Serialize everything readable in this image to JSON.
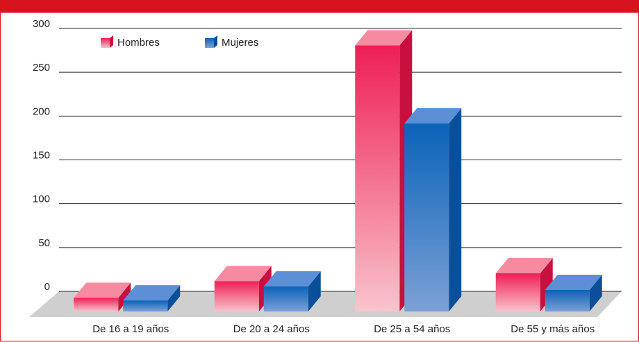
{
  "chart_data": {
    "type": "bar3d",
    "categories": [
      "De 16 a 19 años",
      "De 20 a 24 años",
      "De 25 a 54 años",
      "De 55 y más años"
    ],
    "series": [
      {
        "name": "Hombres",
        "color": "#f0607a",
        "values": [
          10,
          29,
          298,
          38
        ]
      },
      {
        "name": "Mujeres",
        "color": "#1a6bc0",
        "values": [
          7,
          23,
          209,
          19
        ]
      }
    ],
    "ylim": [
      0,
      300
    ],
    "yticks": [
      0,
      50,
      100,
      150,
      200,
      250,
      300
    ],
    "grid": true,
    "legend": "top-left"
  }
}
